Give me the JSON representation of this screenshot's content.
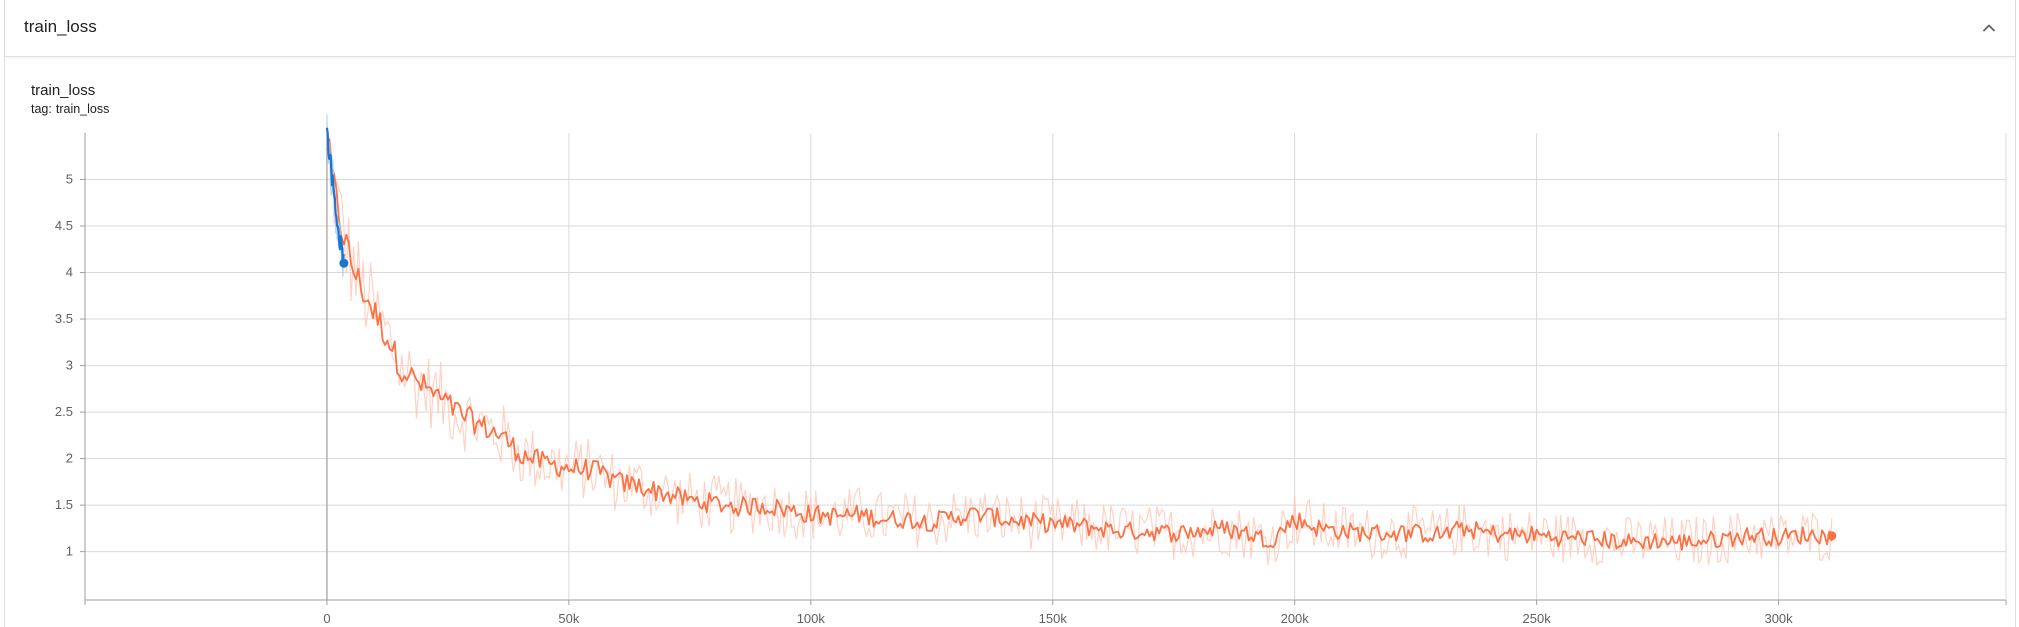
{
  "section": {
    "title": "train_loss"
  },
  "card": {
    "title": "train_loss",
    "tag_label": "tag:",
    "tag_value": "train_loss"
  },
  "icons": {
    "collapse": "chevron-up-icon"
  },
  "colors": {
    "orange": "#ff7043",
    "orange_light": "#ffc7b6",
    "blue": "#1976d2",
    "blue_light": "#a6c9ee",
    "grid": "#d9d9d9",
    "axis": "#9e9e9e"
  },
  "chart_data": {
    "type": "line",
    "title": "train_loss",
    "xlabel": "",
    "ylabel": "",
    "xlim": [
      -50000,
      347000
    ],
    "ylim": [
      0.48,
      5.5
    ],
    "x_ticks": [
      0,
      50000,
      100000,
      150000,
      200000,
      250000,
      300000
    ],
    "x_tick_labels": [
      "0",
      "50k",
      "100k",
      "150k",
      "200k",
      "250k",
      "300k"
    ],
    "y_ticks": [
      1,
      1.5,
      2,
      2.5,
      3,
      3.5,
      4,
      4.5,
      5
    ],
    "y_tick_labels": [
      "1",
      "1.5",
      "2",
      "2.5",
      "3",
      "3.5",
      "4",
      "4.5",
      "5"
    ],
    "grid": true,
    "series": [
      {
        "color": "#ff7043",
        "points": [
          [
            0,
            5.4
          ],
          [
            1000,
            5.05
          ],
          [
            2000,
            4.75
          ],
          [
            3000,
            4.5
          ],
          [
            5000,
            4.1
          ],
          [
            7000,
            3.85
          ],
          [
            10000,
            3.55
          ],
          [
            13000,
            3.25
          ],
          [
            15000,
            3.0
          ],
          [
            18000,
            2.85
          ],
          [
            22000,
            2.7
          ],
          [
            27000,
            2.5
          ],
          [
            32000,
            2.35
          ],
          [
            36000,
            2.25
          ],
          [
            40000,
            2.05
          ],
          [
            45000,
            1.95
          ],
          [
            50000,
            1.9
          ],
          [
            55000,
            1.88
          ],
          [
            60000,
            1.75
          ],
          [
            65000,
            1.7
          ],
          [
            70000,
            1.62
          ],
          [
            75000,
            1.55
          ],
          [
            80000,
            1.52
          ],
          [
            85000,
            1.48
          ],
          [
            90000,
            1.5
          ],
          [
            95000,
            1.45
          ],
          [
            100000,
            1.4
          ],
          [
            105000,
            1.38
          ],
          [
            110000,
            1.4
          ],
          [
            115000,
            1.35
          ],
          [
            120000,
            1.35
          ],
          [
            125000,
            1.32
          ],
          [
            130000,
            1.38
          ],
          [
            135000,
            1.4
          ],
          [
            140000,
            1.35
          ],
          [
            145000,
            1.32
          ],
          [
            150000,
            1.3
          ],
          [
            155000,
            1.28
          ],
          [
            160000,
            1.25
          ],
          [
            165000,
            1.22
          ],
          [
            170000,
            1.22
          ],
          [
            175000,
            1.2
          ],
          [
            180000,
            1.22
          ],
          [
            185000,
            1.25
          ],
          [
            190000,
            1.2
          ],
          [
            195000,
            1.12
          ],
          [
            200000,
            1.35
          ],
          [
            205000,
            1.25
          ],
          [
            210000,
            1.22
          ],
          [
            215000,
            1.2
          ],
          [
            220000,
            1.2
          ],
          [
            225000,
            1.2
          ],
          [
            230000,
            1.18
          ],
          [
            235000,
            1.25
          ],
          [
            240000,
            1.2
          ],
          [
            245000,
            1.18
          ],
          [
            250000,
            1.18
          ],
          [
            255000,
            1.15
          ],
          [
            260000,
            1.15
          ],
          [
            265000,
            1.12
          ],
          [
            270000,
            1.1
          ],
          [
            275000,
            1.12
          ],
          [
            280000,
            1.1
          ],
          [
            285000,
            1.12
          ],
          [
            290000,
            1.15
          ],
          [
            295000,
            1.18
          ],
          [
            300000,
            1.15
          ],
          [
            305000,
            1.18
          ],
          [
            311000,
            1.17
          ]
        ]
      },
      {
        "color": "#1976d2",
        "points": [
          [
            0,
            5.5
          ],
          [
            500,
            5.3
          ],
          [
            1000,
            5.05
          ],
          [
            1500,
            4.85
          ],
          [
            2000,
            4.6
          ],
          [
            2500,
            4.4
          ],
          [
            3000,
            4.25
          ],
          [
            3500,
            4.1
          ]
        ]
      }
    ]
  }
}
